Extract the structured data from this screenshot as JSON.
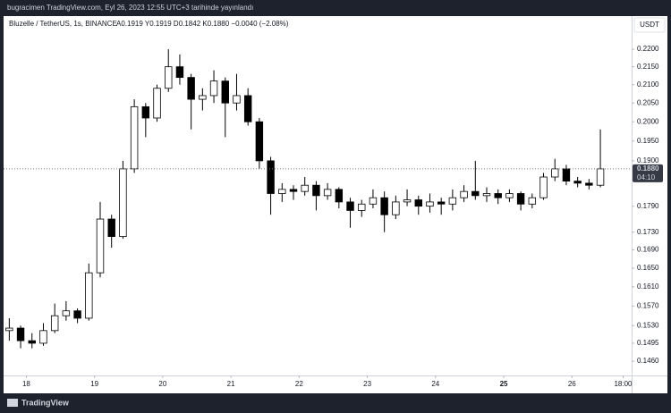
{
  "header": {
    "publisher": "bugracimen TradingView.com, Eyl 26, 2023 12:55 UTC+3 tarihinde yayınlandı"
  },
  "footer": {
    "brand": "TradingView"
  },
  "chart_data": {
    "type": "candlestick",
    "title": "Bluzelle / TetherUS, 1s, BINANCE",
    "ohlc_summary": "A0.1919 Y0.1919 D0.1842 K0.1880 −0.0040 (−2.08%)",
    "currency": "USDT",
    "last_label": "0.1880",
    "countdown": "04:10",
    "log_scale": true,
    "up_color": "#ffffff",
    "down_color": "#000000",
    "x": [
      -6,
      -2,
      2,
      6,
      10,
      14,
      18,
      22,
      26,
      30,
      34,
      38,
      42,
      46,
      50,
      54,
      58,
      62,
      66,
      70,
      74,
      78,
      82,
      86,
      90,
      94,
      98,
      102,
      106,
      110,
      114,
      118,
      122,
      126,
      130,
      134,
      138,
      142,
      146,
      150,
      154,
      158,
      162,
      166,
      170,
      174,
      178,
      182,
      186,
      190,
      194,
      198,
      202
    ],
    "series": [
      {
        "name": "open",
        "values": [
          0.152,
          0.1525,
          0.15,
          0.1495,
          0.152,
          0.155,
          0.156,
          0.1545,
          0.164,
          0.176,
          0.172,
          0.188,
          0.204,
          0.201,
          0.209,
          0.215,
          0.212,
          0.206,
          0.207,
          0.211,
          0.205,
          0.207,
          0.2,
          0.19,
          0.182,
          0.183,
          0.1825,
          0.184,
          0.1815,
          0.183,
          0.18,
          0.178,
          0.1795,
          0.181,
          0.177,
          0.18,
          0.1805,
          0.179,
          0.18,
          0.1795,
          0.181,
          0.1825,
          0.1815,
          0.182,
          0.181,
          0.182,
          0.1795,
          0.181,
          0.186,
          0.188,
          0.185,
          0.1845,
          0.184
        ]
      },
      {
        "name": "high",
        "values": [
          0.1545,
          0.153,
          0.1515,
          0.1535,
          0.1575,
          0.158,
          0.1565,
          0.166,
          0.18,
          0.177,
          0.19,
          0.206,
          0.205,
          0.21,
          0.22,
          0.2185,
          0.213,
          0.209,
          0.214,
          0.212,
          0.213,
          0.209,
          0.201,
          0.191,
          0.1845,
          0.184,
          0.186,
          0.185,
          0.1845,
          0.1835,
          0.181,
          0.1805,
          0.183,
          0.1825,
          0.1815,
          0.183,
          0.1815,
          0.182,
          0.181,
          0.183,
          0.184,
          0.19,
          0.1835,
          0.183,
          0.183,
          0.1825,
          0.182,
          0.187,
          0.1905,
          0.189,
          0.186,
          0.1855,
          0.198
        ]
      },
      {
        "name": "low",
        "values": [
          0.15,
          0.1485,
          0.1485,
          0.149,
          0.1515,
          0.154,
          0.1535,
          0.154,
          0.163,
          0.1695,
          0.1715,
          0.187,
          0.196,
          0.2,
          0.208,
          0.21,
          0.198,
          0.203,
          0.205,
          0.196,
          0.203,
          0.199,
          0.188,
          0.177,
          0.18,
          0.1805,
          0.1815,
          0.178,
          0.1805,
          0.1785,
          0.174,
          0.1765,
          0.1785,
          0.173,
          0.176,
          0.179,
          0.177,
          0.1775,
          0.177,
          0.178,
          0.18,
          0.1805,
          0.18,
          0.1795,
          0.18,
          0.178,
          0.1785,
          0.1805,
          0.185,
          0.184,
          0.1835,
          0.183,
          0.1835
        ]
      },
      {
        "name": "close",
        "values": [
          0.1525,
          0.15,
          0.1495,
          0.152,
          0.155,
          0.156,
          0.1545,
          0.164,
          0.176,
          0.172,
          0.188,
          0.204,
          0.201,
          0.209,
          0.215,
          0.212,
          0.206,
          0.207,
          0.211,
          0.205,
          0.207,
          0.2,
          0.19,
          0.182,
          0.183,
          0.1825,
          0.184,
          0.1815,
          0.183,
          0.18,
          0.178,
          0.1795,
          0.181,
          0.177,
          0.18,
          0.1805,
          0.179,
          0.18,
          0.1795,
          0.181,
          0.1825,
          0.1815,
          0.182,
          0.181,
          0.182,
          0.1795,
          0.181,
          0.186,
          0.188,
          0.185,
          0.1845,
          0.184,
          0.188
        ]
      }
    ],
    "xlim": [
      -8,
      213
    ],
    "xticks": [
      {
        "value": 0,
        "label": "18"
      },
      {
        "value": 24,
        "label": "19"
      },
      {
        "value": 48,
        "label": "20"
      },
      {
        "value": 72,
        "label": "21"
      },
      {
        "value": 96,
        "label": "22"
      },
      {
        "value": 120,
        "label": "23"
      },
      {
        "value": 144,
        "label": "24"
      },
      {
        "value": 168,
        "label": "25"
      },
      {
        "value": 192,
        "label": "26"
      },
      {
        "value": 210,
        "label": "18:00"
      }
    ],
    "ylim": [
      0.1433,
      0.2298
    ],
    "yticks": [
      {
        "value": 0.22,
        "label": "0.2200"
      },
      {
        "value": 0.215,
        "label": "0.2150"
      },
      {
        "value": 0.21,
        "label": "0.2100"
      },
      {
        "value": 0.205,
        "label": "0.2050"
      },
      {
        "value": 0.2,
        "label": "0.2000"
      },
      {
        "value": 0.195,
        "label": "0.1950"
      },
      {
        "value": 0.19,
        "label": "0.1900"
      },
      {
        "value": 0.179,
        "label": "0.1790"
      },
      {
        "value": 0.173,
        "label": "0.1730"
      },
      {
        "value": 0.169,
        "label": "0.1690"
      },
      {
        "value": 0.165,
        "label": "0.1650"
      },
      {
        "value": 0.161,
        "label": "0.1610"
      },
      {
        "value": 0.157,
        "label": "0.1570"
      },
      {
        "value": 0.153,
        "label": "0.1530"
      },
      {
        "value": 0.1495,
        "label": "0.1495"
      },
      {
        "value": 0.146,
        "label": "0.1460"
      }
    ]
  }
}
